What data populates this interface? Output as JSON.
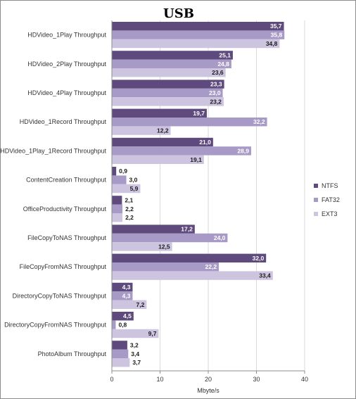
{
  "chart_data": {
    "type": "bar",
    "orientation": "horizontal",
    "title": "USB",
    "xlabel": "Mbyte/s",
    "ylabel": "",
    "xlim": [
      0,
      40
    ],
    "xticks": [
      0,
      10,
      20,
      30,
      40
    ],
    "grid": true,
    "legend_position": "right",
    "categories": [
      "HDVideo_1Play Throughput",
      "HDVideo_2Play Throughput",
      "HDVideo_4Play Throughput",
      "HDVideo_1Record Throughput",
      "HDVideo_1Play_1Record Throughput",
      "ContentCreation Throughput",
      "OfficeProductivity Throughput",
      "FileCopyToNAS Throughput",
      "FileCopyFromNAS Throughput",
      "DirectoryCopyToNAS Throughput",
      "DirectoryCopyFromNAS Throughput",
      "PhotoAlbum Throughput"
    ],
    "series": [
      {
        "name": "NTFS",
        "color": "#5e4a7c",
        "values": [
          35.7,
          25.1,
          23.3,
          19.7,
          21.0,
          0.9,
          2.1,
          17.2,
          32.0,
          4.3,
          4.5,
          3.2
        ],
        "labels": [
          "35,7",
          "25,1",
          "23,3",
          "19,7",
          "21,0",
          "0,9",
          "2,1",
          "17,2",
          "32,0",
          "4,3",
          "4,5",
          "3,2"
        ]
      },
      {
        "name": "FAT32",
        "color": "#a89ac6",
        "values": [
          35.8,
          24.8,
          23.0,
          32.2,
          28.9,
          3.0,
          2.2,
          24.0,
          22.2,
          4.3,
          0.8,
          3.4
        ],
        "labels": [
          "35,8",
          "24,8",
          "23,0",
          "32,2",
          "28,9",
          "3,0",
          "2,2",
          "24,0",
          "22,2",
          "4,3",
          "0,8",
          "3,4"
        ]
      },
      {
        "name": "EXT3",
        "color": "#cdc4e0",
        "values": [
          34.8,
          23.6,
          23.2,
          12.2,
          19.1,
          5.9,
          2.2,
          12.5,
          33.4,
          7.2,
          9.7,
          3.7
        ],
        "labels": [
          "34,8",
          "23,6",
          "23,2",
          "12,2",
          "19,1",
          "5,9",
          "2,2",
          "12,5",
          "33,4",
          "7,2",
          "9,7",
          "3,7"
        ]
      }
    ]
  }
}
